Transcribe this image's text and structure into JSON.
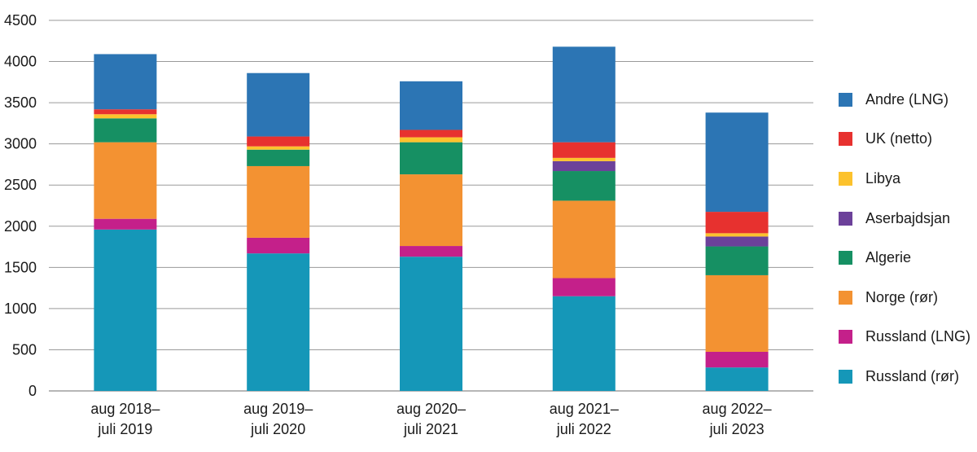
{
  "chart_data": {
    "type": "bar",
    "stacked": true,
    "title": "",
    "xlabel": "",
    "ylabel": "",
    "ylim": [
      0,
      4500
    ],
    "yticks": [
      0,
      500,
      1000,
      1500,
      2000,
      2500,
      3000,
      3500,
      4000,
      4500
    ],
    "grid": true,
    "legend_position": "right",
    "categories": [
      [
        "aug 2018–",
        "juli 2019"
      ],
      [
        "aug 2019–",
        "juli 2020"
      ],
      [
        "aug 2020–",
        "juli 2021"
      ],
      [
        "aug 2021–",
        "juli 2022"
      ],
      [
        "aug 2022–",
        "juli 2023"
      ]
    ],
    "series": [
      {
        "name": "Russland (rør)",
        "color": "#1597b8",
        "values": [
          1960,
          1670,
          1630,
          1150,
          285
        ]
      },
      {
        "name": "Russland (LNG)",
        "color": "#c4208a",
        "values": [
          130,
          190,
          130,
          220,
          190
        ]
      },
      {
        "name": "Norge (rør)",
        "color": "#f39232",
        "values": [
          930,
          870,
          870,
          940,
          930
        ]
      },
      {
        "name": "Algerie",
        "color": "#169063",
        "values": [
          290,
          200,
          390,
          360,
          350
        ]
      },
      {
        "name": "Aserbajdsjan",
        "color": "#6c419a",
        "values": [
          0,
          0,
          0,
          120,
          120
        ]
      },
      {
        "name": "Libya",
        "color": "#fcc22d",
        "values": [
          50,
          40,
          60,
          40,
          40
        ]
      },
      {
        "name": "UK (netto)",
        "color": "#e7312f",
        "values": [
          60,
          120,
          90,
          190,
          260
        ]
      },
      {
        "name": "Andre (LNG)",
        "color": "#2c75b4",
        "values": [
          670,
          770,
          590,
          1160,
          1205
        ]
      }
    ],
    "legend_order": [
      "Andre (LNG)",
      "UK (netto)",
      "Libya",
      "Aserbajdsjan",
      "Algerie",
      "Norge (rør)",
      "Russland (LNG)",
      "Russland (rør)"
    ]
  }
}
